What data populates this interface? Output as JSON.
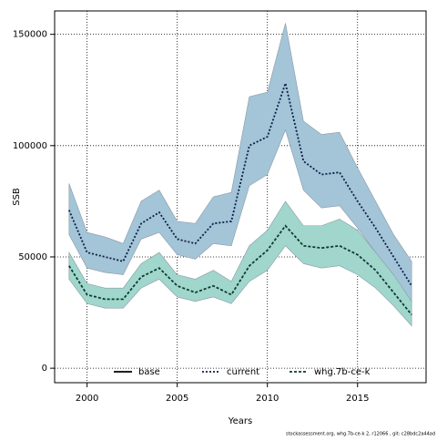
{
  "chart_data": {
    "type": "line",
    "x": [
      1999,
      2000,
      2001,
      2002,
      2003,
      2004,
      2005,
      2006,
      2007,
      2008,
      2009,
      2010,
      2011,
      2012,
      2013,
      2014,
      2015,
      2016,
      2017,
      2018
    ],
    "series": [
      {
        "name": "base",
        "color": "#000000",
        "values": [
          null,
          null,
          null,
          null,
          null,
          null,
          null,
          null,
          null,
          null,
          null,
          null,
          null,
          null,
          null,
          null,
          null,
          null,
          null,
          null
        ]
      },
      {
        "name": "current",
        "color": "#0b1f4a",
        "band_color": "#a4c4d7",
        "values": [
          71000,
          52000,
          50000,
          48000,
          65000,
          70000,
          58000,
          56000,
          65000,
          66000,
          100000,
          104000,
          128000,
          93000,
          87000,
          88000,
          75000,
          63000,
          50000,
          37000
        ],
        "upper": [
          83000,
          61000,
          59000,
          56000,
          75000,
          80000,
          66000,
          65000,
          77000,
          79000,
          122000,
          124000,
          155000,
          111000,
          105000,
          106000,
          90000,
          75000,
          60000,
          48000
        ],
        "lower": [
          60000,
          45000,
          43000,
          42000,
          58000,
          61000,
          51000,
          49000,
          56000,
          55000,
          82000,
          87000,
          107000,
          80000,
          72000,
          73000,
          63000,
          52000,
          40000,
          27000
        ]
      },
      {
        "name": "whg.7b-ce-k",
        "color": "#0d3b2e",
        "band_color": "#a0d6cc",
        "values": [
          46000,
          33000,
          31000,
          31000,
          41000,
          45000,
          37000,
          34000,
          37000,
          33000,
          46000,
          53000,
          64000,
          55000,
          54000,
          55000,
          51000,
          44000,
          34000,
          24000
        ],
        "upper": [
          52000,
          38000,
          36000,
          36000,
          47000,
          52000,
          42000,
          40000,
          44000,
          39000,
          55000,
          62000,
          75000,
          64000,
          64000,
          67000,
          62000,
          52000,
          42000,
          30000
        ],
        "lower": [
          40000,
          29000,
          27000,
          27000,
          36000,
          40000,
          32000,
          30000,
          32000,
          29000,
          39000,
          44000,
          55000,
          47000,
          45000,
          46000,
          42000,
          36000,
          28000,
          19000
        ]
      }
    ],
    "xlabel": "Years",
    "ylabel": "SSB",
    "xlim": [
      1998.2,
      2018.8
    ],
    "ylim": [
      -6500,
      160500
    ],
    "xticks": [
      2000,
      2005,
      2010,
      2015
    ],
    "yticks": [
      0,
      50000,
      100000,
      150000
    ],
    "grid": true,
    "legend": "bottom",
    "footnote": "stockassessment.org, whg.7b-ce-k 2, r12066 , git: c28bdc2a44ad"
  }
}
